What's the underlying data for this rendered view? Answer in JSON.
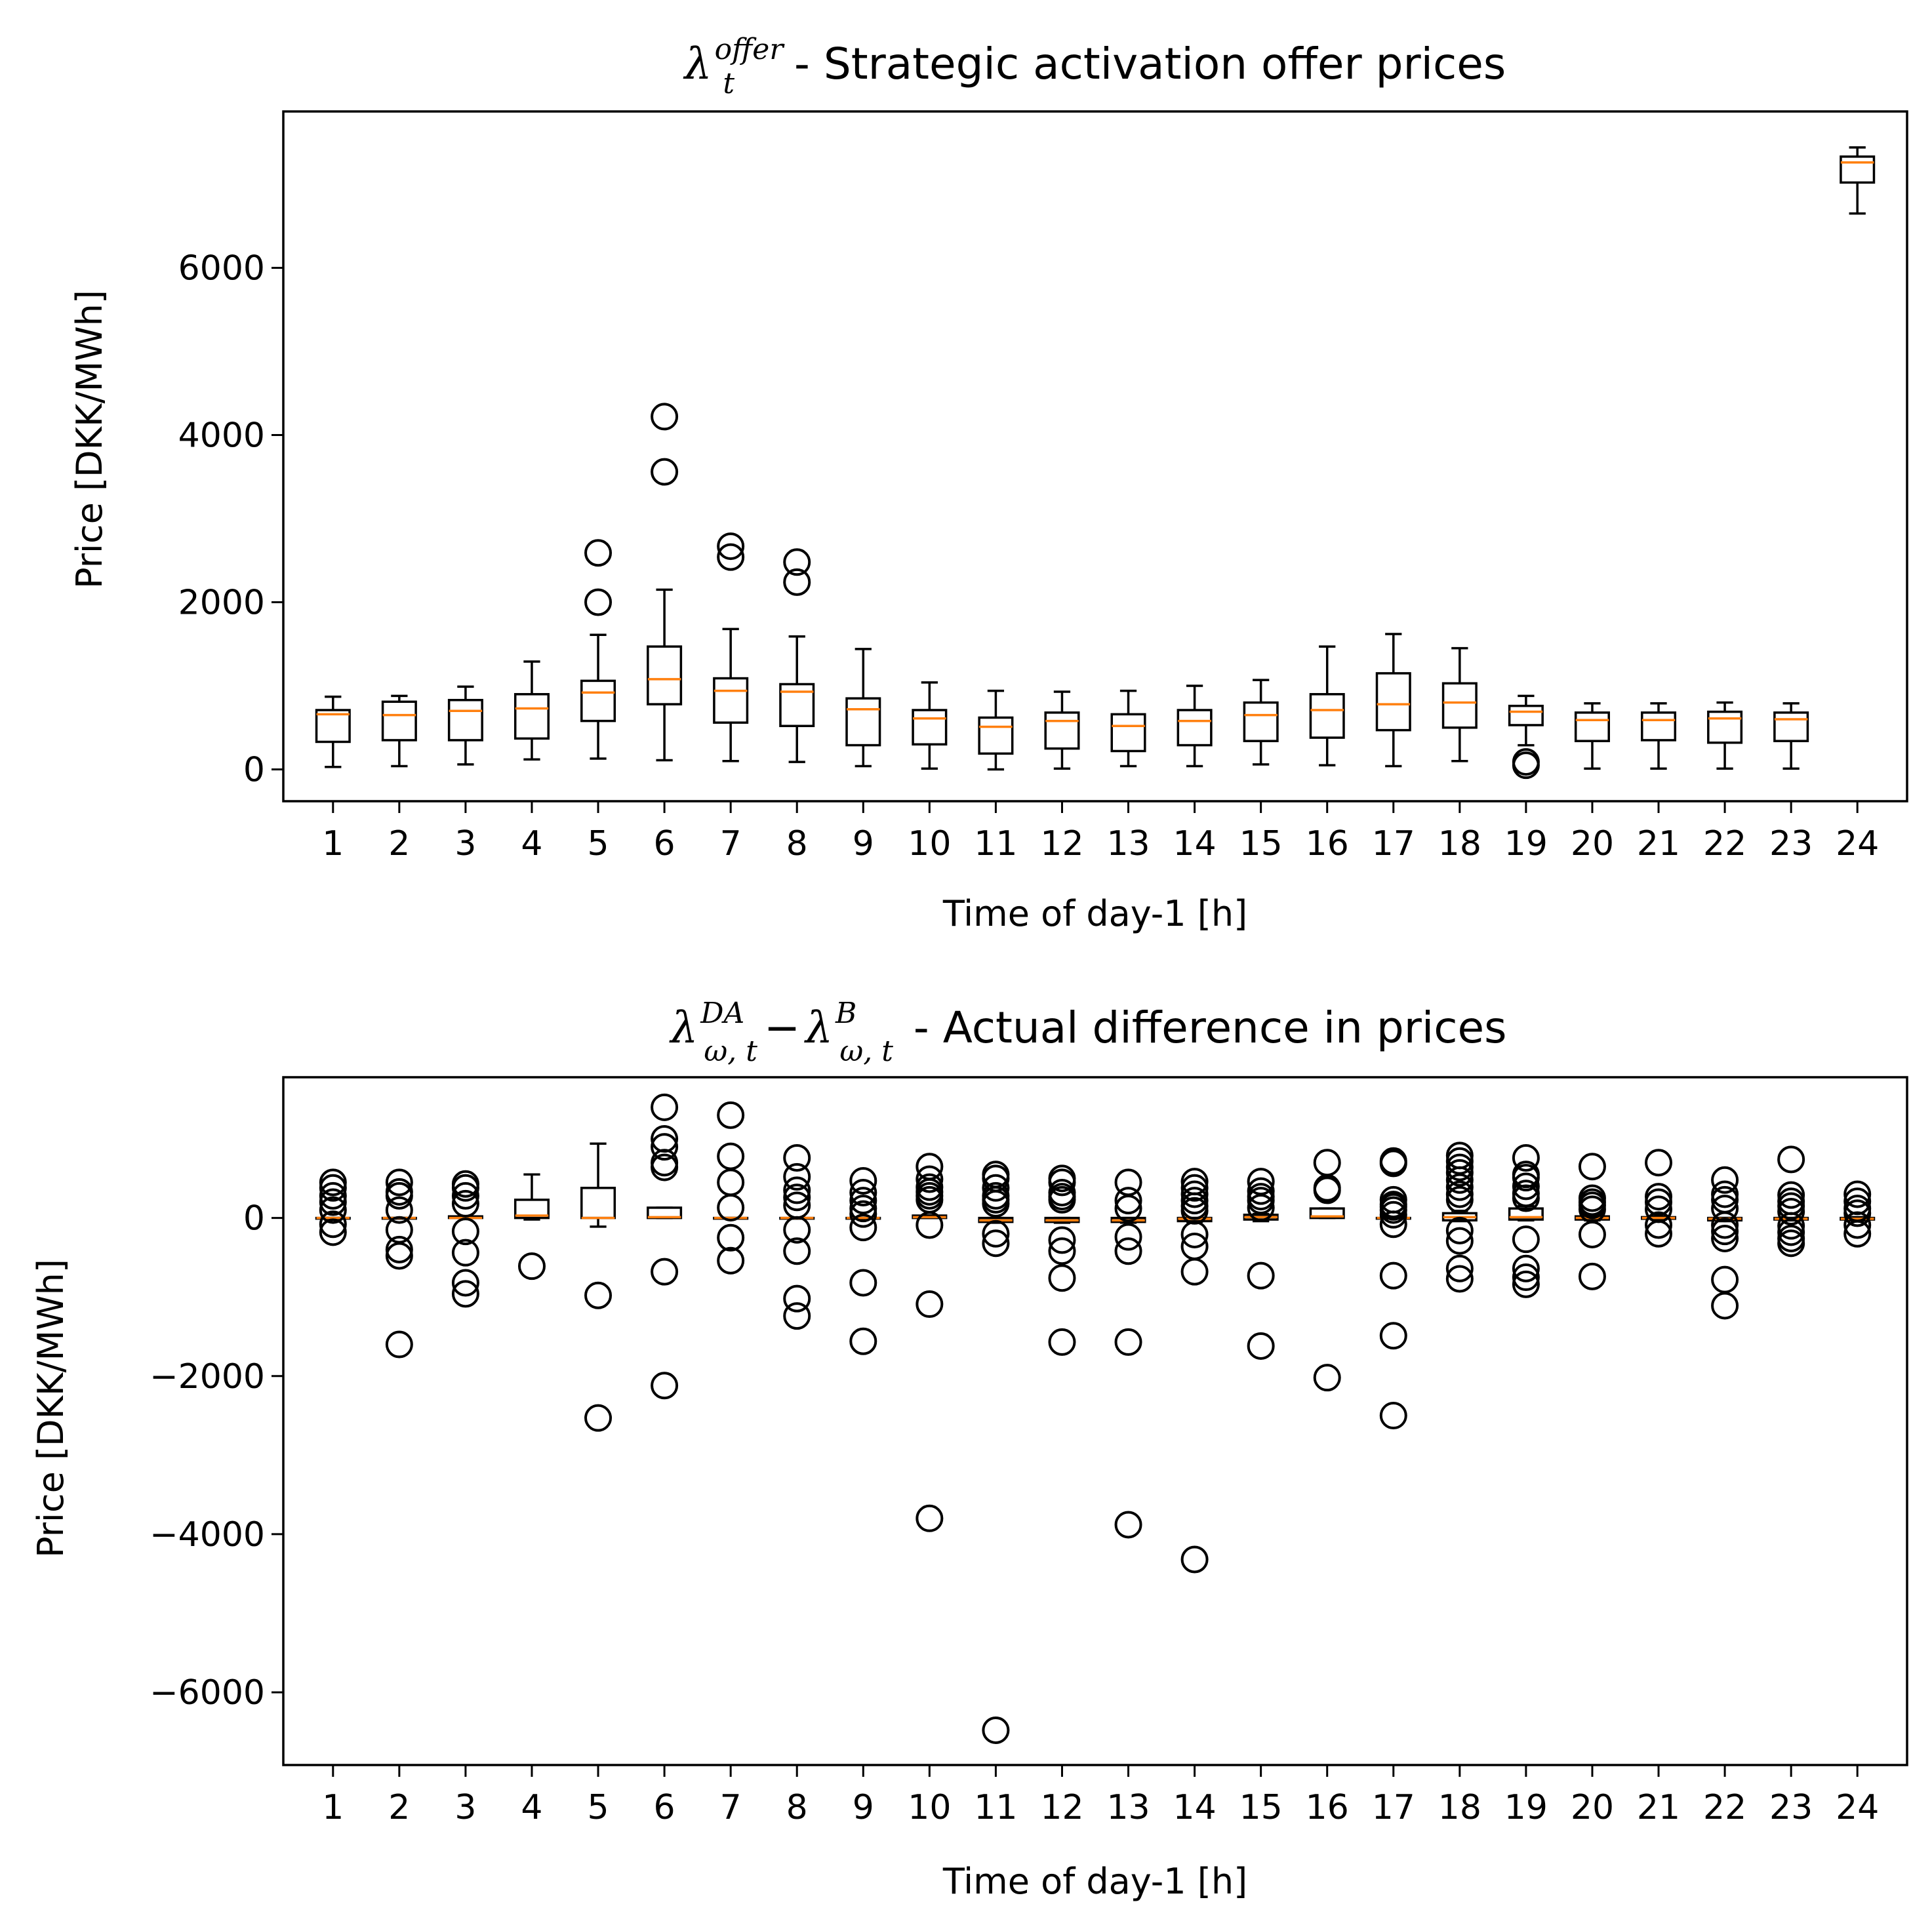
{
  "chart_data": [
    {
      "type": "box",
      "title": "λ_t^{offer} - Strategic activation offer prices",
      "title_parts": {
        "symbol": "λ",
        "sub": "t",
        "sup": "offer",
        "text": " - Strategic activation offer prices"
      },
      "xlabel": "Time of day-1 [h]",
      "ylabel": "Price [DKK/MWh]",
      "categories": [
        "1",
        "2",
        "3",
        "4",
        "5",
        "6",
        "7",
        "8",
        "9",
        "10",
        "11",
        "12",
        "13",
        "14",
        "15",
        "16",
        "17",
        "18",
        "19",
        "20",
        "21",
        "22",
        "23",
        "24"
      ],
      "ylim": [
        -380,
        7870
      ],
      "yticks": [
        0,
        2000,
        4000,
        6000
      ],
      "ytick_labels": [
        "0",
        "2000",
        "4000",
        "6000"
      ],
      "boxes": [
        {
          "whislo": 30,
          "q1": 330,
          "med": 660,
          "q3": 710,
          "whishi": 870,
          "fliers": []
        },
        {
          "whislo": 40,
          "q1": 350,
          "med": 650,
          "q3": 810,
          "whishi": 880,
          "fliers": []
        },
        {
          "whislo": 60,
          "q1": 350,
          "med": 700,
          "q3": 830,
          "whishi": 990,
          "fliers": []
        },
        {
          "whislo": 120,
          "q1": 370,
          "med": 730,
          "q3": 900,
          "whishi": 1290,
          "fliers": []
        },
        {
          "whislo": 130,
          "q1": 580,
          "med": 920,
          "q3": 1060,
          "whishi": 1610,
          "fliers": [
            2000,
            2590
          ]
        },
        {
          "whislo": 110,
          "q1": 780,
          "med": 1080,
          "q3": 1470,
          "whishi": 2150,
          "fliers": [
            3560,
            4220
          ]
        },
        {
          "whislo": 100,
          "q1": 560,
          "med": 940,
          "q3": 1090,
          "whishi": 1680,
          "fliers": [
            2540,
            2670
          ]
        },
        {
          "whislo": 90,
          "q1": 520,
          "med": 930,
          "q3": 1020,
          "whishi": 1590,
          "fliers": [
            2240,
            2480
          ]
        },
        {
          "whislo": 40,
          "q1": 290,
          "med": 720,
          "q3": 850,
          "whishi": 1440,
          "fliers": []
        },
        {
          "whislo": 10,
          "q1": 300,
          "med": 610,
          "q3": 710,
          "whishi": 1040,
          "fliers": []
        },
        {
          "whislo": 0,
          "q1": 190,
          "med": 510,
          "q3": 620,
          "whishi": 940,
          "fliers": []
        },
        {
          "whislo": 10,
          "q1": 250,
          "med": 580,
          "q3": 680,
          "whishi": 930,
          "fliers": []
        },
        {
          "whislo": 40,
          "q1": 220,
          "med": 520,
          "q3": 660,
          "whishi": 940,
          "fliers": []
        },
        {
          "whislo": 40,
          "q1": 290,
          "med": 580,
          "q3": 710,
          "whishi": 1000,
          "fliers": []
        },
        {
          "whislo": 60,
          "q1": 340,
          "med": 650,
          "q3": 800,
          "whishi": 1070,
          "fliers": []
        },
        {
          "whislo": 50,
          "q1": 380,
          "med": 710,
          "q3": 900,
          "whishi": 1470,
          "fliers": []
        },
        {
          "whislo": 40,
          "q1": 470,
          "med": 780,
          "q3": 1150,
          "whishi": 1620,
          "fliers": []
        },
        {
          "whislo": 100,
          "q1": 500,
          "med": 800,
          "q3": 1030,
          "whishi": 1450,
          "fliers": []
        },
        {
          "whislo": 290,
          "q1": 530,
          "med": 690,
          "q3": 760,
          "whishi": 880,
          "fliers": [
            50,
            90
          ]
        },
        {
          "whislo": 10,
          "q1": 340,
          "med": 590,
          "q3": 680,
          "whishi": 790,
          "fliers": []
        },
        {
          "whislo": 10,
          "q1": 350,
          "med": 590,
          "q3": 680,
          "whishi": 790,
          "fliers": []
        },
        {
          "whislo": 10,
          "q1": 320,
          "med": 610,
          "q3": 690,
          "whishi": 800,
          "fliers": []
        },
        {
          "whislo": 10,
          "q1": 340,
          "med": 600,
          "q3": 680,
          "whishi": 790,
          "fliers": []
        },
        {
          "whislo": 6650,
          "q1": 7020,
          "med": 7260,
          "q3": 7330,
          "whishi": 7440,
          "fliers": []
        }
      ]
    },
    {
      "type": "box",
      "title": "λ_{ω,t}^{DA} − λ_{ω,t}^{B} - Actual difference in prices",
      "title_parts": {
        "symbol": "λ",
        "sub1": "ω, t",
        "sup1": "DA",
        "minus": "−",
        "sub2": "ω, t",
        "sup2": "B",
        "text": " - Actual difference in prices"
      },
      "xlabel": "Time of day-1 [h]",
      "ylabel": "Price [DKK/MWh]",
      "categories": [
        "1",
        "2",
        "3",
        "4",
        "5",
        "6",
        "7",
        "8",
        "9",
        "10",
        "11",
        "12",
        "13",
        "14",
        "15",
        "16",
        "17",
        "18",
        "19",
        "20",
        "21",
        "22",
        "23",
        "24"
      ],
      "ylim": [
        -6920,
        1780
      ],
      "yticks": [
        -6000,
        -4000,
        -2000,
        0
      ],
      "ytick_labels": [
        "−6000",
        "−4000",
        "−2000",
        "0"
      ],
      "boxes": [
        {
          "whislo": 0,
          "q1": 0,
          "med": 0,
          "q3": 0,
          "whishi": 0,
          "fliers": [
            450,
            380,
            280,
            200,
            100,
            -80,
            -180
          ]
        },
        {
          "whislo": 0,
          "q1": 0,
          "med": 0,
          "q3": 0,
          "whishi": 0,
          "fliers": [
            450,
            330,
            280,
            100,
            -150,
            -400,
            -480,
            -1600
          ]
        },
        {
          "whislo": 0,
          "q1": 0,
          "med": 0,
          "q3": 20,
          "whishi": 20,
          "fliers": [
            430,
            380,
            280,
            180,
            -170,
            -440,
            -820,
            -960
          ]
        },
        {
          "whislo": -20,
          "q1": 0,
          "med": 30,
          "q3": 230,
          "whishi": 550,
          "fliers": [
            -610
          ]
        },
        {
          "whislo": -110,
          "q1": 0,
          "med": 0,
          "q3": 380,
          "whishi": 940,
          "fliers": [
            -980,
            -2530
          ]
        },
        {
          "whislo": 0,
          "q1": 0,
          "med": 10,
          "q3": 130,
          "whishi": 130,
          "fliers": [
            1400,
            1000,
            900,
            700,
            640,
            -680,
            -2120
          ]
        },
        {
          "whislo": 0,
          "q1": 0,
          "med": 0,
          "q3": 0,
          "whishi": 0,
          "fliers": [
            1300,
            780,
            450,
            130,
            -250,
            -540
          ]
        },
        {
          "whislo": 0,
          "q1": 0,
          "med": 0,
          "q3": 0,
          "whishi": 0,
          "fliers": [
            760,
            520,
            350,
            260,
            160,
            -150,
            -420,
            -1020,
            -1240
          ]
        },
        {
          "whislo": 0,
          "q1": 0,
          "med": 0,
          "q3": 0,
          "whishi": 0,
          "fliers": [
            470,
            320,
            220,
            120,
            50,
            -120,
            -820,
            -1560
          ]
        },
        {
          "whislo": 0,
          "q1": 0,
          "med": 10,
          "q3": 30,
          "whishi": 30,
          "fliers": [
            650,
            490,
            390,
            330,
            280,
            230,
            -90,
            -1090,
            -3800
          ]
        },
        {
          "whislo": -60,
          "q1": -50,
          "med": -30,
          "q3": 0,
          "whishi": 0,
          "fliers": [
            550,
            500,
            380,
            280,
            230,
            180,
            -200,
            -320,
            -6480
          ]
        },
        {
          "whislo": -60,
          "q1": -50,
          "med": -30,
          "q3": 0,
          "whishi": 0,
          "fliers": [
            500,
            450,
            320,
            270,
            230,
            -280,
            -420,
            -760,
            -1570
          ]
        },
        {
          "whislo": -60,
          "q1": -50,
          "med": -30,
          "q3": 0,
          "whishi": 0,
          "fliers": [
            450,
            220,
            120,
            -240,
            -420,
            -1570,
            -3880
          ]
        },
        {
          "whislo": -50,
          "q1": -40,
          "med": -10,
          "q3": 0,
          "whishi": 0,
          "fliers": [
            460,
            380,
            300,
            220,
            150,
            90,
            -210,
            -360,
            -680,
            -4320
          ]
        },
        {
          "whislo": -40,
          "q1": -20,
          "med": 10,
          "q3": 40,
          "whishi": 50,
          "fliers": [
            460,
            340,
            270,
            220,
            130,
            -730,
            -1620
          ]
        },
        {
          "whislo": 0,
          "q1": 0,
          "med": 20,
          "q3": 120,
          "whishi": 120,
          "fliers": [
            700,
            380,
            350,
            -2020
          ]
        },
        {
          "whislo": 0,
          "q1": 0,
          "med": 0,
          "q3": 0,
          "whishi": 0,
          "fliers": [
            720,
            690,
            230,
            170,
            140,
            100,
            40,
            -80,
            -730,
            -1490,
            -2500
          ]
        },
        {
          "whislo": -40,
          "q1": -30,
          "med": 10,
          "q3": 60,
          "whishi": 90,
          "fliers": [
            790,
            720,
            640,
            570,
            480,
            390,
            300,
            230,
            -160,
            -290,
            -640,
            -770
          ]
        },
        {
          "whislo": -30,
          "q1": -20,
          "med": 10,
          "q3": 120,
          "whishi": 150,
          "fliers": [
            760,
            550,
            510,
            400,
            310,
            250,
            -270,
            -640,
            -750,
            -840
          ]
        },
        {
          "whislo": -30,
          "q1": -20,
          "med": 0,
          "q3": 20,
          "whishi": 40,
          "fliers": [
            650,
            250,
            200,
            160,
            110,
            -210,
            -740
          ]
        },
        {
          "whislo": -20,
          "q1": -10,
          "med": 0,
          "q3": 10,
          "whishi": 20,
          "fliers": [
            700,
            270,
            200,
            110,
            -90,
            -200
          ]
        },
        {
          "whislo": -40,
          "q1": -30,
          "med": -10,
          "q3": 0,
          "whishi": 0,
          "fliers": [
            480,
            300,
            230,
            120,
            -90,
            -170,
            -260,
            -780,
            -1110
          ]
        },
        {
          "whislo": -30,
          "q1": -20,
          "med": -10,
          "q3": 0,
          "whishi": 0,
          "fliers": [
            740,
            290,
            210,
            150,
            80,
            -100,
            -180,
            -260,
            -320
          ]
        },
        {
          "whislo": -30,
          "q1": -20,
          "med": -10,
          "q3": 0,
          "whishi": 10,
          "fliers": [
            300,
            210,
            120,
            60,
            -90,
            -200
          ]
        }
      ]
    }
  ],
  "colors": {
    "median": "#ff7f0e",
    "box_edge": "#000000",
    "background": "#ffffff"
  }
}
